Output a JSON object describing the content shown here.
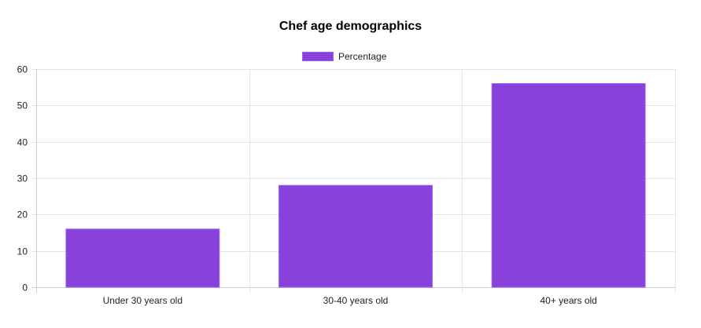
{
  "chart_data": {
    "type": "bar",
    "title": "Chef age demographics",
    "categories": [
      "Under 30 years old",
      "30-40 years old",
      "40+ years old"
    ],
    "series": [
      {
        "name": "Percentage",
        "values": [
          16,
          28,
          56
        ]
      }
    ],
    "xlabel": "",
    "ylabel": "",
    "ylim": [
      0,
      60
    ],
    "yticks": [
      0,
      10,
      20,
      30,
      40,
      50,
      60
    ],
    "grid": true,
    "legend_position": "top",
    "colors": {
      "bar_fill": "#8842db",
      "bar_border": "#9b5ef0",
      "grid": "#e5e5e5",
      "axis": "#cccccc",
      "tick_text": "#222222"
    }
  }
}
